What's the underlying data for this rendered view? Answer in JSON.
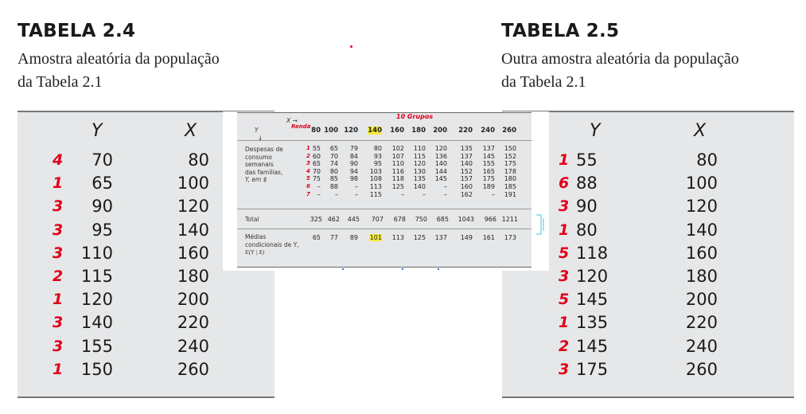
{
  "left": {
    "title": "TABELA 2.4",
    "subtitle_line1": "Amostra aleatória da população",
    "subtitle_line2": "da Tabela 2.1",
    "header_y": "Y",
    "header_x": "X",
    "rows": [
      {
        "mark": "4",
        "y": "70",
        "x": "80"
      },
      {
        "mark": "1",
        "y": "65",
        "x": "100"
      },
      {
        "mark": "3",
        "y": "90",
        "x": "120"
      },
      {
        "mark": "3",
        "y": "95",
        "x": "140"
      },
      {
        "mark": "3",
        "y": "110",
        "x": "160"
      },
      {
        "mark": "2",
        "y": "115",
        "x": "180"
      },
      {
        "mark": "1",
        "y": "120",
        "x": "200"
      },
      {
        "mark": "3",
        "y": "140",
        "x": "220"
      },
      {
        "mark": "3",
        "y": "155",
        "x": "240"
      },
      {
        "mark": "1",
        "y": "150",
        "x": "260"
      }
    ]
  },
  "right": {
    "title": "TABELA 2.5",
    "subtitle_line1": "Outra amostra aleatória da população",
    "subtitle_line2": "da Tabela 2.1",
    "header_y": "Y",
    "header_x": "X",
    "rows": [
      {
        "mark": "1",
        "y": "55",
        "x": "80"
      },
      {
        "mark": "6",
        "y": "88",
        "x": "100"
      },
      {
        "mark": "3",
        "y": "90",
        "x": "120"
      },
      {
        "mark": "1",
        "y": "80",
        "x": "140"
      },
      {
        "mark": "5",
        "y": "118",
        "x": "160"
      },
      {
        "mark": "3",
        "y": "120",
        "x": "180"
      },
      {
        "mark": "5",
        "y": "145",
        "x": "200"
      },
      {
        "mark": "1",
        "y": "135",
        "x": "220"
      },
      {
        "mark": "2",
        "y": "145",
        "x": "240"
      },
      {
        "mark": "3",
        "y": "175",
        "x": "260"
      }
    ]
  },
  "inset": {
    "annotation_groups": "10 Grupos",
    "annotation_renda": "Renda",
    "corner_x": "X →",
    "corner_y": "Y",
    "corner_arrow": "↓",
    "x_headers": [
      "80",
      "100",
      "120",
      "140",
      "160",
      "180",
      "200",
      "220",
      "240",
      "260"
    ],
    "label_consumo": [
      "Despesas de",
      "consumo",
      "semanais",
      "das famílias,",
      "Y, em $"
    ],
    "row_marks": [
      "1",
      "2",
      "3",
      "4",
      "5",
      "6",
      "7"
    ],
    "columns": [
      [
        "55",
        "60",
        "65",
        "70",
        "75",
        "–",
        "–"
      ],
      [
        "65",
        "70",
        "74",
        "80",
        "85",
        "88",
        "–"
      ],
      [
        "79",
        "84",
        "90",
        "94",
        "98",
        "–",
        "–"
      ],
      [
        "80",
        "93",
        "95",
        "103",
        "108",
        "113",
        "115"
      ],
      [
        "102",
        "107",
        "110",
        "116",
        "118",
        "125",
        "–"
      ],
      [
        "110",
        "115",
        "120",
        "130",
        "135",
        "140",
        "–"
      ],
      [
        "120",
        "136",
        "140",
        "144",
        "145",
        "–",
        "–"
      ],
      [
        "135",
        "137",
        "140",
        "152",
        "157",
        "160",
        "162"
      ],
      [
        "137",
        "145",
        "155",
        "165",
        "175",
        "189",
        "–"
      ],
      [
        "150",
        "152",
        "175",
        "178",
        "180",
        "185",
        "191"
      ]
    ],
    "total_label": "Total",
    "totals": [
      "325",
      "462",
      "445",
      "707",
      "678",
      "750",
      "685",
      "1043",
      "966",
      "1211"
    ],
    "medias_label": [
      "Médias",
      "condicionais de Y,",
      "E(Y | X)"
    ],
    "means": [
      "65",
      "77",
      "89",
      "101",
      "113",
      "125",
      "137",
      "149",
      "161",
      "173"
    ]
  }
}
